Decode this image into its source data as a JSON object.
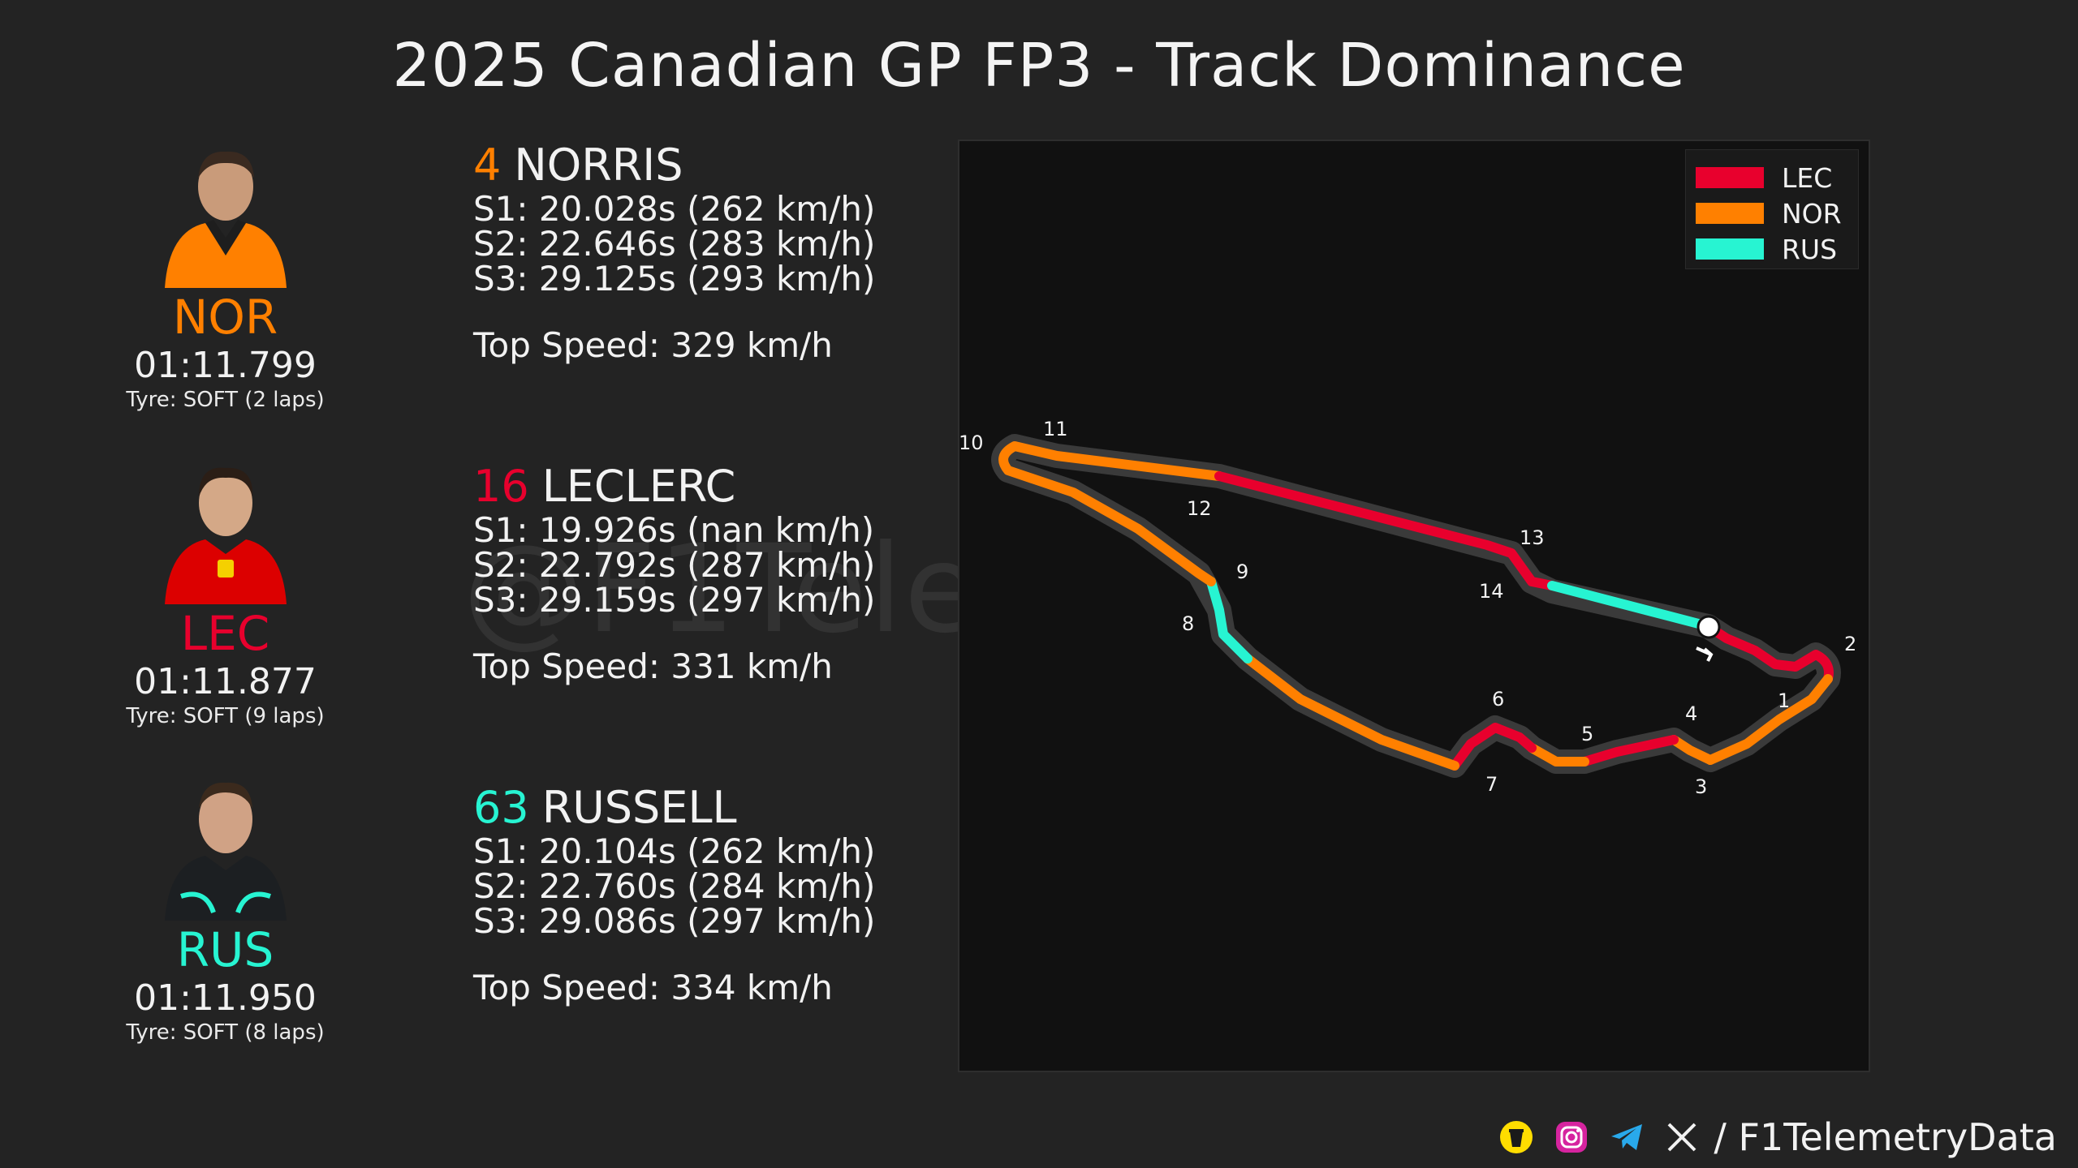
{
  "title": "2025 Canadian GP FP3 - Track Dominance",
  "drivers": [
    {
      "code": "NOR",
      "color": "#ff8000",
      "laptime": "01:11.799",
      "tyre": "Tyre: SOFT (2 laps)",
      "portrait_icon": "driver-portrait-icon"
    },
    {
      "code": "LEC",
      "color": "#e8002d",
      "laptime": "01:11.877",
      "tyre": "Tyre: SOFT (9 laps)",
      "portrait_icon": "driver-portrait-icon"
    },
    {
      "code": "RUS",
      "color": "#27f4d2",
      "laptime": "01:11.950",
      "tyre": "Tyre: SOFT (8 laps)",
      "portrait_icon": "driver-portrait-icon"
    }
  ],
  "sectors": [
    {
      "number": "4",
      "name": "NORRIS",
      "color": "#ff8000",
      "s1": "S1:  20.028s  (262 km/h)",
      "s2": "S2:  22.646s  (283 km/h)",
      "s3": "S3:  29.125s  (293 km/h)",
      "top_speed": "Top Speed: 329 km/h"
    },
    {
      "number": "16",
      "name": "LECLERC",
      "color": "#e8002d",
      "s1": "S1:  19.926s  (nan km/h)",
      "s2": "S2:  22.792s  (287 km/h)",
      "s3": "S3:  29.159s  (297 km/h)",
      "top_speed": "Top Speed: 331 km/h"
    },
    {
      "number": "63",
      "name": "RUSSELL",
      "color": "#27f4d2",
      "s1": "S1:  20.104s  (262 km/h)",
      "s2": "S2:  22.760s  (284 km/h)",
      "s3": "S3:  29.086s  (297 km/h)",
      "top_speed": "Top Speed: 334 km/h"
    }
  ],
  "legend": [
    {
      "label": "LEC",
      "color": "#e8002d"
    },
    {
      "label": "NOR",
      "color": "#ff8000"
    },
    {
      "label": "RUS",
      "color": "#27f4d2"
    }
  ],
  "track_map": {
    "corners": [
      "1",
      "2",
      "3",
      "4",
      "5",
      "6",
      "7",
      "8",
      "9",
      "10",
      "11",
      "12",
      "13",
      "14"
    ],
    "start_marker": "start-finish-marker-icon",
    "direction_icon": "direction-arrow-icon"
  },
  "watermark": "@F1TelemetryData",
  "footer": {
    "icons": [
      "coffee-cup-icon",
      "instagram-icon",
      "telegram-icon",
      "x-logo-icon"
    ],
    "handle": "/ F1TelemetryData"
  }
}
